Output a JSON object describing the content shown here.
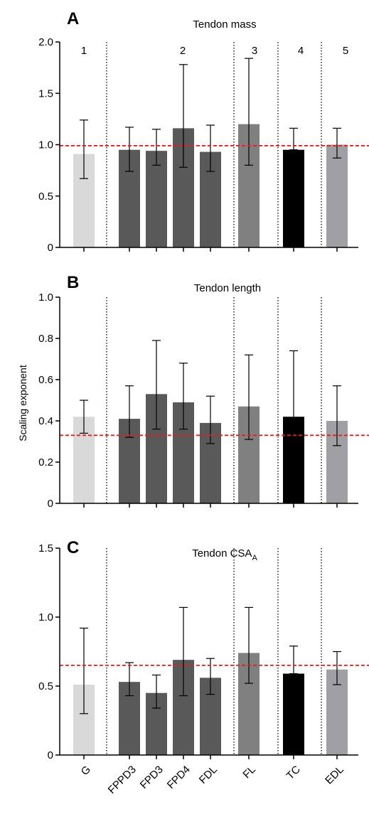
{
  "figure": {
    "ylabel": "Scaling exponent",
    "categories": [
      "G",
      "FPPD3",
      "FPD3",
      "FPD4",
      "FDL",
      "FL",
      "TC",
      "EDL"
    ]
  },
  "chart_data": [
    {
      "type": "bar",
      "letter": "A",
      "title": "Tendon mass",
      "title_sub": "",
      "categories": [
        "G",
        "FPPD3",
        "FPD3",
        "FPD4",
        "FDL",
        "FL",
        "TC",
        "EDL"
      ],
      "values": [
        0.91,
        0.95,
        0.94,
        1.16,
        0.93,
        1.2,
        0.95,
        1.0
      ],
      "err_low": [
        0.67,
        0.74,
        0.8,
        0.78,
        0.74,
        0.8,
        0.95,
        0.87
      ],
      "err_high": [
        1.24,
        1.17,
        1.15,
        1.78,
        1.19,
        1.84,
        1.16,
        1.16
      ],
      "colors": [
        "#d9d9d9",
        "#595959",
        "#595959",
        "#595959",
        "#595959",
        "#808080",
        "#000000",
        "#a0a0a4"
      ],
      "ylim": [
        0,
        2.0
      ],
      "yticks": [
        "0",
        "0.5",
        "1.0",
        "1.5",
        "2.0"
      ],
      "reference_line": 0.99,
      "reference_color": "#e0201b",
      "group_labels": [
        "1",
        "2",
        "3",
        "4",
        "5"
      ],
      "grid": false
    },
    {
      "type": "bar",
      "letter": "B",
      "title": "Tendon length",
      "title_sub": "",
      "categories": [
        "G",
        "FPPD3",
        "FPD3",
        "FPD4",
        "FDL",
        "FL",
        "TC",
        "EDL"
      ],
      "values": [
        0.42,
        0.41,
        0.53,
        0.49,
        0.39,
        0.47,
        0.42,
        0.4
      ],
      "err_low": [
        0.34,
        0.32,
        0.36,
        0.36,
        0.29,
        0.31,
        0.33,
        0.28
      ],
      "err_high": [
        0.5,
        0.57,
        0.79,
        0.68,
        0.52,
        0.72,
        0.74,
        0.57
      ],
      "colors": [
        "#d9d9d9",
        "#595959",
        "#595959",
        "#595959",
        "#595959",
        "#808080",
        "#000000",
        "#a0a0a4"
      ],
      "ylim": [
        0,
        1.0
      ],
      "yticks": [
        "0",
        "0.2",
        "0.4",
        "0.6",
        "0.8",
        "1.0"
      ],
      "reference_line": 0.33,
      "reference_color": "#e0201b",
      "group_labels": [],
      "grid": false
    },
    {
      "type": "bar",
      "letter": "C",
      "title": "Tendon CSA",
      "title_sub": "A",
      "categories": [
        "G",
        "FPPD3",
        "FPD3",
        "FPD4",
        "FDL",
        "FL",
        "TC",
        "EDL"
      ],
      "values": [
        0.51,
        0.53,
        0.45,
        0.69,
        0.56,
        0.74,
        0.59,
        0.62
      ],
      "err_low": [
        0.3,
        0.43,
        0.34,
        0.43,
        0.44,
        0.52,
        0.59,
        0.51
      ],
      "err_high": [
        0.92,
        0.67,
        0.58,
        1.07,
        0.7,
        1.07,
        0.79,
        0.75
      ],
      "colors": [
        "#d9d9d9",
        "#595959",
        "#595959",
        "#595959",
        "#595959",
        "#808080",
        "#000000",
        "#a0a0a4"
      ],
      "ylim": [
        0,
        1.5
      ],
      "yticks": [
        "0",
        "0.5",
        "1.0",
        "1.5"
      ],
      "reference_line": 0.65,
      "reference_color": "#e0201b",
      "group_labels": [],
      "grid": false
    }
  ]
}
